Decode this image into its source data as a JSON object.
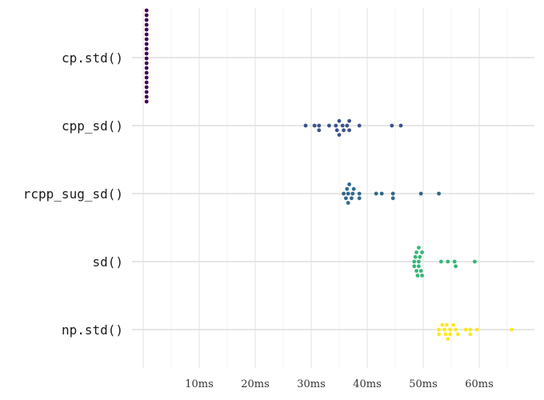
{
  "chart_data": {
    "type": "scatter",
    "subtype": "beeswarm",
    "orientation": "horizontal",
    "title": "",
    "xlabel": "",
    "ylabel": "",
    "x_unit": "ms",
    "xlim": [
      0,
      66
    ],
    "x_ticks": [
      10,
      20,
      30,
      40,
      50,
      60
    ],
    "x_tick_labels": [
      "10ms",
      "20ms",
      "30ms",
      "40ms",
      "50ms",
      "60ms"
    ],
    "categories": [
      "cp.std()",
      "cpp_sd()",
      "rcpp_sug_sd()",
      "sd()",
      "np.std()"
    ],
    "grid": true,
    "legend": "none",
    "series": [
      {
        "category": "cp.std()",
        "color": "#440154",
        "values": [
          0.6,
          0.6,
          0.6,
          0.6,
          0.6,
          0.6,
          0.6,
          0.6,
          0.6,
          0.6,
          0.6,
          0.6,
          0.6,
          0.6,
          0.6,
          0.6,
          0.6,
          0.6,
          0.6,
          0.6,
          0.6,
          0.6,
          0.6,
          0.6,
          0.6,
          0.6,
          0.6,
          0.6,
          0.6,
          0.6,
          0.6,
          0.6,
          0.6,
          0.6,
          0.6,
          0.6,
          0.6,
          0.6,
          0.6,
          0.6,
          0.6,
          0.6,
          0.6,
          0.6,
          0.6,
          0.6,
          0.6,
          0.6,
          0.6,
          0.6,
          0.6,
          0.6,
          0.6,
          0.6,
          0.6,
          0.6,
          0.6,
          0.6,
          0.6,
          0.6
        ]
      },
      {
        "category": "cpp_sd()",
        "color": "#3B528B",
        "values": [
          29.0,
          30.6,
          31.4,
          31.4,
          33.2,
          34.4,
          34.6,
          35.0,
          35.0,
          35.6,
          35.8,
          36.4,
          36.8,
          36.8,
          38.6,
          44.4,
          46.0
        ]
      },
      {
        "category": "rcpp_sug_sd()",
        "color": "#31688E",
        "values": [
          35.8,
          36.2,
          36.4,
          36.6,
          36.6,
          36.8,
          37.2,
          37.4,
          37.6,
          38.6,
          38.6,
          41.6,
          42.6,
          44.6,
          44.6,
          49.6,
          52.8
        ]
      },
      {
        "category": "sd()",
        "color": "#35B779",
        "values": [
          48.4,
          48.4,
          48.6,
          48.8,
          48.8,
          49.0,
          49.2,
          49.2,
          49.2,
          49.4,
          49.6,
          49.8,
          49.8,
          53.2,
          54.4,
          55.6,
          55.8,
          59.2
        ]
      },
      {
        "category": "np.std()",
        "color": "#FDE725",
        "values": [
          52.8,
          52.8,
          53.4,
          53.8,
          54.0,
          54.2,
          54.4,
          54.8,
          54.8,
          55.4,
          55.8,
          56.2,
          57.6,
          58.4,
          58.4,
          59.6,
          65.8
        ]
      }
    ]
  }
}
